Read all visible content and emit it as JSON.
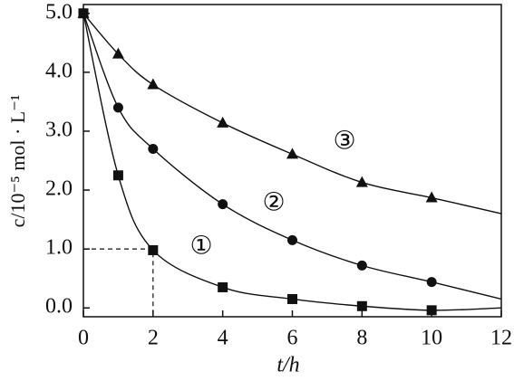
{
  "chart_data": {
    "type": "line",
    "x_label": "t/h",
    "y_label": "c/10⁻⁵ mol · L⁻¹",
    "x": [
      0,
      1,
      2,
      4,
      6,
      8,
      10
    ],
    "series": [
      {
        "name": "①",
        "marker": "square",
        "color": "#111111",
        "values": [
          5.0,
          2.25,
          0.98,
          0.35,
          0.15,
          0.03,
          -0.04
        ],
        "line_end": 0.0
      },
      {
        "name": "②",
        "marker": "circle",
        "color": "#111111",
        "values": [
          5.0,
          3.4,
          2.7,
          1.76,
          1.15,
          0.72,
          0.44
        ],
        "line_end": 0.15
      },
      {
        "name": "③",
        "marker": "triangle",
        "color": "#111111",
        "values": [
          5.0,
          4.31,
          3.79,
          3.14,
          2.61,
          2.13,
          1.87
        ],
        "line_end": 1.6
      }
    ],
    "xlim": [
      0,
      12
    ],
    "xticks": [
      0,
      2,
      4,
      6,
      8,
      10,
      12
    ],
    "ylim": [
      -0.15,
      5.15
    ],
    "yticks": [
      {
        "value": 0,
        "label": "0.0"
      },
      {
        "value": 1,
        "label": "1.0"
      },
      {
        "value": 2,
        "label": "2.0"
      },
      {
        "value": 3,
        "label": "3.0"
      },
      {
        "value": 4,
        "label": "4.0"
      },
      {
        "value": 5,
        "label": "5.0"
      }
    ],
    "reference": {
      "x": 2,
      "y": 1.0
    }
  }
}
